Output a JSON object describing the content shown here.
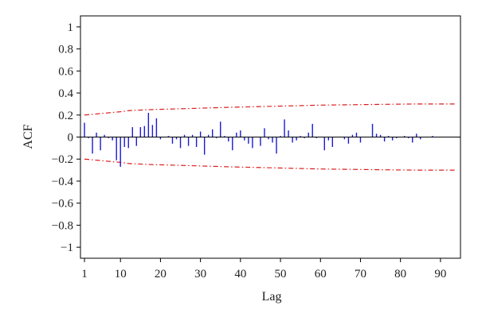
{
  "chart_data": {
    "type": "bar",
    "xlabel": "Lag",
    "ylabel": "ACF",
    "xlim": [
      0,
      95
    ],
    "ylim": [
      -1.1,
      1.1
    ],
    "x_ticks": [
      1,
      10,
      20,
      30,
      40,
      50,
      60,
      70,
      80,
      90
    ],
    "x_tick_labels": [
      "1",
      "10",
      "20",
      "30",
      "40",
      "50",
      "60",
      "70",
      "80",
      "90"
    ],
    "y_ticks": [
      1,
      0.8,
      0.6,
      0.4,
      0.2,
      0,
      -0.2,
      -0.4,
      -0.6,
      -0.8,
      -1
    ],
    "y_tick_labels": [
      "1",
      "0.8",
      "0.6",
      "0.4",
      "0.2",
      "0",
      "−0.2",
      "−0.4",
      "−0.6",
      "−0.8",
      "−1"
    ],
    "grid": false,
    "zero_line": true,
    "colors": {
      "bars": "#1a1ad6",
      "bounds": "#e01b1b",
      "axis": "#000000"
    },
    "acf": {
      "lags": [
        1,
        2,
        3,
        4,
        5,
        6,
        7,
        8,
        9,
        10,
        11,
        12,
        13,
        14,
        15,
        16,
        17,
        18,
        19,
        20,
        21,
        22,
        23,
        24,
        25,
        26,
        27,
        28,
        29,
        30,
        31,
        32,
        33,
        34,
        35,
        36,
        37,
        38,
        39,
        40,
        41,
        42,
        43,
        44,
        45,
        46,
        47,
        48,
        49,
        50,
        51,
        52,
        53,
        54,
        55,
        56,
        57,
        58,
        59,
        60,
        61,
        62,
        63,
        64,
        65,
        66,
        67,
        68,
        69,
        70,
        71,
        72,
        73,
        74,
        75,
        76,
        77,
        78,
        79,
        80,
        81,
        82,
        83,
        84,
        85,
        86,
        87,
        88,
        89,
        90,
        91,
        92,
        93,
        94
      ],
      "values": [
        0.13,
        -0.01,
        -0.15,
        0.04,
        -0.12,
        0.02,
        -0.01,
        -0.03,
        -0.21,
        -0.27,
        -0.09,
        -0.1,
        0.09,
        -0.08,
        0.09,
        0.1,
        0.22,
        0.11,
        0.17,
        -0.02,
        0,
        0.01,
        -0.06,
        -0.02,
        -0.1,
        0.02,
        -0.08,
        0.02,
        -0.09,
        0.05,
        -0.16,
        0.02,
        0.07,
        -0.01,
        0.14,
        0.01,
        -0.04,
        -0.12,
        0.04,
        0.06,
        -0.03,
        -0.06,
        -0.1,
        0,
        -0.08,
        0.08,
        -0.02,
        -0.05,
        -0.15,
        0.01,
        0.16,
        0.06,
        -0.05,
        -0.03,
        0.01,
        -0.01,
        0.04,
        0.12,
        -0.01,
        0,
        -0.12,
        -0.03,
        -0.09,
        0,
        0,
        -0.02,
        -0.06,
        0.02,
        0.04,
        -0.05,
        0,
        0,
        0.12,
        0.03,
        0.02,
        -0.04,
        0.01,
        -0.03,
        -0.01,
        0,
        0.01,
        -0.01,
        -0.05,
        0.03,
        -0.02,
        0,
        0,
        0.01,
        0,
        0,
        0,
        0,
        0,
        0
      ]
    },
    "confidence_bounds": {
      "lags": [
        1,
        10,
        12,
        18,
        28,
        37,
        49,
        60,
        83,
        94
      ],
      "upper": [
        0.2,
        0.23,
        0.24,
        0.25,
        0.26,
        0.27,
        0.28,
        0.29,
        0.3,
        0.3
      ],
      "lower": [
        -0.2,
        -0.23,
        -0.24,
        -0.25,
        -0.26,
        -0.27,
        -0.28,
        -0.29,
        -0.3,
        -0.3
      ]
    }
  }
}
